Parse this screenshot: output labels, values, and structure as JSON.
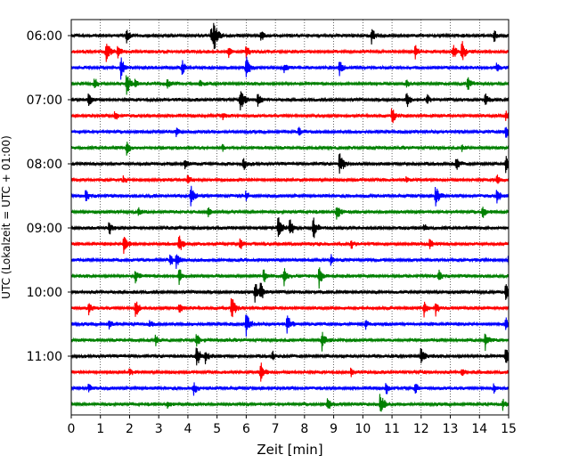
{
  "chart_data": {
    "type": "line",
    "title": "",
    "xlabel": "Zeit  [min]",
    "ylabel": "UTC (Lokalzeit = UTC + 01:00)",
    "xlim": [
      0,
      15
    ],
    "x_ticks": [
      "0",
      "1",
      "2",
      "3",
      "4",
      "5",
      "6",
      "7",
      "8",
      "9",
      "10",
      "11",
      "12",
      "13",
      "14",
      "15"
    ],
    "y_ticks": [
      "06:00",
      "07:00",
      "08:00",
      "09:00",
      "10:00",
      "11:00"
    ],
    "trace_interval_min": 15,
    "first_trace": "06:00",
    "trace_colors": [
      "#000000",
      "#ff0000",
      "#0000ff",
      "#008000"
    ],
    "grid": "vertical dotted",
    "traces": [
      {
        "start": "06:00",
        "color": "#000000",
        "events": [
          [
            1.9,
            0.5
          ],
          [
            4.9,
            1.0
          ],
          [
            4.8,
            0.6
          ],
          [
            6.5,
            0.6
          ],
          [
            10.3,
            0.7
          ],
          [
            14.5,
            0.5
          ]
        ]
      },
      {
        "start": "06:15",
        "color": "#ff0000",
        "events": [
          [
            1.2,
            0.9
          ],
          [
            1.6,
            0.7
          ],
          [
            5.4,
            0.4
          ],
          [
            6.0,
            0.5
          ],
          [
            11.8,
            0.5
          ],
          [
            13.4,
            0.8
          ],
          [
            13.1,
            0.6
          ]
        ]
      },
      {
        "start": "06:30",
        "color": "#0000ff",
        "events": [
          [
            1.7,
            0.9
          ],
          [
            3.8,
            0.6
          ],
          [
            6.0,
            0.9
          ],
          [
            7.3,
            0.4
          ],
          [
            9.2,
            0.6
          ],
          [
            14.6,
            0.4
          ]
        ]
      },
      {
        "start": "06:45",
        "color": "#008000",
        "events": [
          [
            0.8,
            0.5
          ],
          [
            1.9,
            0.9
          ],
          [
            2.2,
            0.4
          ],
          [
            3.3,
            0.4
          ],
          [
            4.4,
            0.3
          ],
          [
            11.5,
            0.4
          ],
          [
            13.6,
            0.6
          ]
        ]
      },
      {
        "start": "07:00",
        "color": "#000000",
        "events": [
          [
            0.6,
            0.6
          ],
          [
            5.8,
            1.0
          ],
          [
            6.4,
            0.5
          ],
          [
            11.5,
            0.6
          ],
          [
            12.2,
            0.4
          ],
          [
            14.2,
            0.5
          ]
        ]
      },
      {
        "start": "07:15",
        "color": "#ff0000",
        "events": [
          [
            1.5,
            0.4
          ],
          [
            5.2,
            0.3
          ],
          [
            11.0,
            0.7
          ],
          [
            14.9,
            0.4
          ]
        ]
      },
      {
        "start": "07:30",
        "color": "#0000ff",
        "events": [
          [
            3.6,
            0.3
          ],
          [
            7.8,
            0.3
          ],
          [
            14.9,
            0.6
          ]
        ]
      },
      {
        "start": "07:45",
        "color": "#008000",
        "events": [
          [
            1.9,
            0.6
          ],
          [
            5.2,
            0.3
          ],
          [
            13.4,
            0.3
          ]
        ]
      },
      {
        "start": "08:00",
        "color": "#000000",
        "events": [
          [
            3.9,
            0.4
          ],
          [
            5.9,
            0.6
          ],
          [
            9.2,
            1.0
          ],
          [
            13.2,
            0.6
          ],
          [
            14.9,
            0.7
          ]
        ]
      },
      {
        "start": "08:15",
        "color": "#ff0000",
        "events": [
          [
            1.8,
            0.3
          ],
          [
            4.0,
            0.4
          ],
          [
            11.5,
            0.3
          ],
          [
            14.6,
            0.4
          ]
        ]
      },
      {
        "start": "08:30",
        "color": "#0000ff",
        "events": [
          [
            0.5,
            0.5
          ],
          [
            4.1,
            0.8
          ],
          [
            6.0,
            0.4
          ],
          [
            12.5,
            0.9
          ],
          [
            14.6,
            0.6
          ]
        ]
      },
      {
        "start": "08:45",
        "color": "#008000",
        "events": [
          [
            2.3,
            0.4
          ],
          [
            4.7,
            0.4
          ],
          [
            9.1,
            0.7
          ],
          [
            14.1,
            0.6
          ]
        ]
      },
      {
        "start": "09:00",
        "color": "#000000",
        "events": [
          [
            1.3,
            0.6
          ],
          [
            7.1,
            1.0
          ],
          [
            7.5,
            0.8
          ],
          [
            8.3,
            0.9
          ],
          [
            12.1,
            0.3
          ]
        ]
      },
      {
        "start": "09:15",
        "color": "#ff0000",
        "events": [
          [
            1.8,
            0.9
          ],
          [
            3.7,
            0.7
          ],
          [
            5.8,
            0.5
          ],
          [
            9.6,
            0.4
          ],
          [
            12.3,
            0.4
          ]
        ]
      },
      {
        "start": "09:30",
        "color": "#0000ff",
        "events": [
          [
            3.6,
            0.6
          ],
          [
            3.4,
            0.4
          ],
          [
            8.9,
            0.4
          ],
          [
            15.0,
            0.5
          ]
        ]
      },
      {
        "start": "09:45",
        "color": "#008000",
        "events": [
          [
            2.2,
            0.5
          ],
          [
            3.7,
            0.7
          ],
          [
            6.6,
            0.6
          ],
          [
            7.3,
            0.7
          ],
          [
            8.5,
            0.9
          ],
          [
            12.6,
            0.5
          ]
        ]
      },
      {
        "start": "10:00",
        "color": "#000000",
        "events": [
          [
            6.3,
            0.8
          ],
          [
            6.5,
            0.7
          ],
          [
            14.9,
            0.7
          ]
        ]
      },
      {
        "start": "10:15",
        "color": "#ff0000",
        "events": [
          [
            0.6,
            0.5
          ],
          [
            2.2,
            0.8
          ],
          [
            3.7,
            0.4
          ],
          [
            5.5,
            0.9
          ],
          [
            12.1,
            0.6
          ],
          [
            12.5,
            0.5
          ]
        ]
      },
      {
        "start": "10:30",
        "color": "#0000ff",
        "events": [
          [
            1.3,
            0.4
          ],
          [
            2.7,
            0.3
          ],
          [
            6.0,
            0.9
          ],
          [
            7.4,
            0.8
          ],
          [
            10.1,
            0.3
          ],
          [
            14.9,
            0.5
          ]
        ]
      },
      {
        "start": "10:45",
        "color": "#008000",
        "events": [
          [
            2.9,
            0.4
          ],
          [
            4.3,
            0.5
          ],
          [
            8.6,
            0.8
          ],
          [
            14.2,
            0.7
          ]
        ]
      },
      {
        "start": "11:00",
        "color": "#000000",
        "events": [
          [
            4.3,
            0.9
          ],
          [
            4.6,
            0.6
          ],
          [
            6.9,
            0.4
          ],
          [
            12.0,
            0.8
          ],
          [
            14.9,
            0.7
          ]
        ]
      },
      {
        "start": "11:15",
        "color": "#ff0000",
        "events": [
          [
            2.0,
            0.3
          ],
          [
            6.5,
            0.8
          ],
          [
            9.6,
            0.3
          ],
          [
            13.4,
            0.3
          ]
        ]
      },
      {
        "start": "11:30",
        "color": "#0000ff",
        "events": [
          [
            0.6,
            0.4
          ],
          [
            4.2,
            0.5
          ],
          [
            10.8,
            0.5
          ],
          [
            11.8,
            0.4
          ],
          [
            14.5,
            0.4
          ]
        ]
      },
      {
        "start": "11:45",
        "color": "#008000",
        "events": [
          [
            3.3,
            0.3
          ],
          [
            8.8,
            0.6
          ],
          [
            10.6,
            1.0
          ],
          [
            14.8,
            0.4
          ]
        ]
      }
    ]
  }
}
